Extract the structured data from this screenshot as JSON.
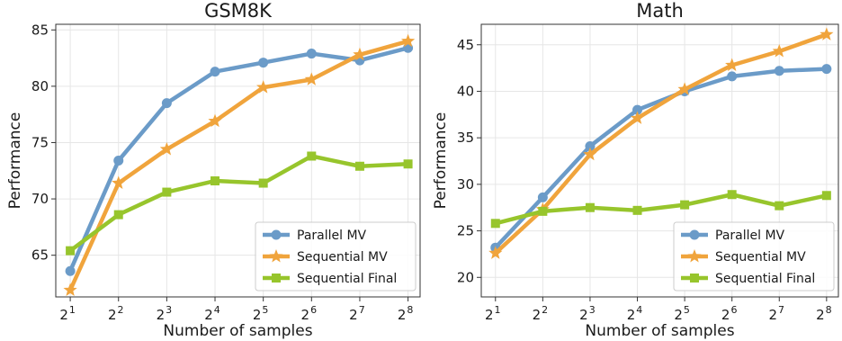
{
  "chart_data": [
    {
      "type": "line",
      "title": "GSM8K",
      "xlabel": "Number of samples",
      "ylabel": "Performance",
      "x": [
        1,
        2,
        3,
        4,
        5,
        6,
        7,
        8
      ],
      "x_tick_labels": [
        {
          "base": "2",
          "exp": "1"
        },
        {
          "base": "2",
          "exp": "2"
        },
        {
          "base": "2",
          "exp": "3"
        },
        {
          "base": "2",
          "exp": "4"
        },
        {
          "base": "2",
          "exp": "5"
        },
        {
          "base": "2",
          "exp": "6"
        },
        {
          "base": "2",
          "exp": "7"
        },
        {
          "base": "2",
          "exp": "8"
        }
      ],
      "xlim": [
        0.7,
        8.25
      ],
      "ylim": [
        61.3,
        85.5
      ],
      "y_ticks": [
        65,
        70,
        75,
        80,
        85
      ],
      "grid": true,
      "legend_position": "lower-right",
      "series": [
        {
          "name": "Parallel MV",
          "color": "#6b9bc8",
          "marker": "circle",
          "values": [
            63.6,
            73.4,
            78.5,
            81.3,
            82.1,
            82.9,
            82.3,
            83.4
          ]
        },
        {
          "name": "Sequential MV",
          "color": "#f0a43c",
          "marker": "star",
          "values": [
            61.9,
            71.4,
            74.4,
            76.9,
            79.9,
            80.6,
            82.8,
            84.0
          ]
        },
        {
          "name": "Sequential Final",
          "color": "#97c52c",
          "marker": "square",
          "values": [
            65.4,
            68.6,
            70.6,
            71.6,
            71.4,
            73.8,
            72.9,
            73.1
          ]
        }
      ]
    },
    {
      "type": "line",
      "title": "Math",
      "xlabel": "Number of samples",
      "ylabel": "Performance",
      "x": [
        1,
        2,
        3,
        4,
        5,
        6,
        7,
        8
      ],
      "x_tick_labels": [
        {
          "base": "2",
          "exp": "1"
        },
        {
          "base": "2",
          "exp": "2"
        },
        {
          "base": "2",
          "exp": "3"
        },
        {
          "base": "2",
          "exp": "4"
        },
        {
          "base": "2",
          "exp": "5"
        },
        {
          "base": "2",
          "exp": "6"
        },
        {
          "base": "2",
          "exp": "7"
        },
        {
          "base": "2",
          "exp": "8"
        }
      ],
      "xlim": [
        0.7,
        8.25
      ],
      "ylim": [
        17.9,
        47.2
      ],
      "y_ticks": [
        20,
        25,
        30,
        35,
        40,
        45
      ],
      "grid": true,
      "legend_position": "lower-right",
      "series": [
        {
          "name": "Parallel MV",
          "color": "#6b9bc8",
          "marker": "circle",
          "values": [
            23.2,
            28.6,
            34.1,
            38.0,
            40.0,
            41.6,
            42.2,
            42.4
          ]
        },
        {
          "name": "Sequential MV",
          "color": "#f0a43c",
          "marker": "star",
          "values": [
            22.6,
            27.3,
            33.2,
            37.1,
            40.2,
            42.8,
            44.3,
            46.1
          ]
        },
        {
          "name": "Sequential Final",
          "color": "#97c52c",
          "marker": "square",
          "values": [
            25.8,
            27.1,
            27.5,
            27.2,
            27.8,
            28.9,
            27.7,
            28.8
          ]
        }
      ]
    }
  ]
}
